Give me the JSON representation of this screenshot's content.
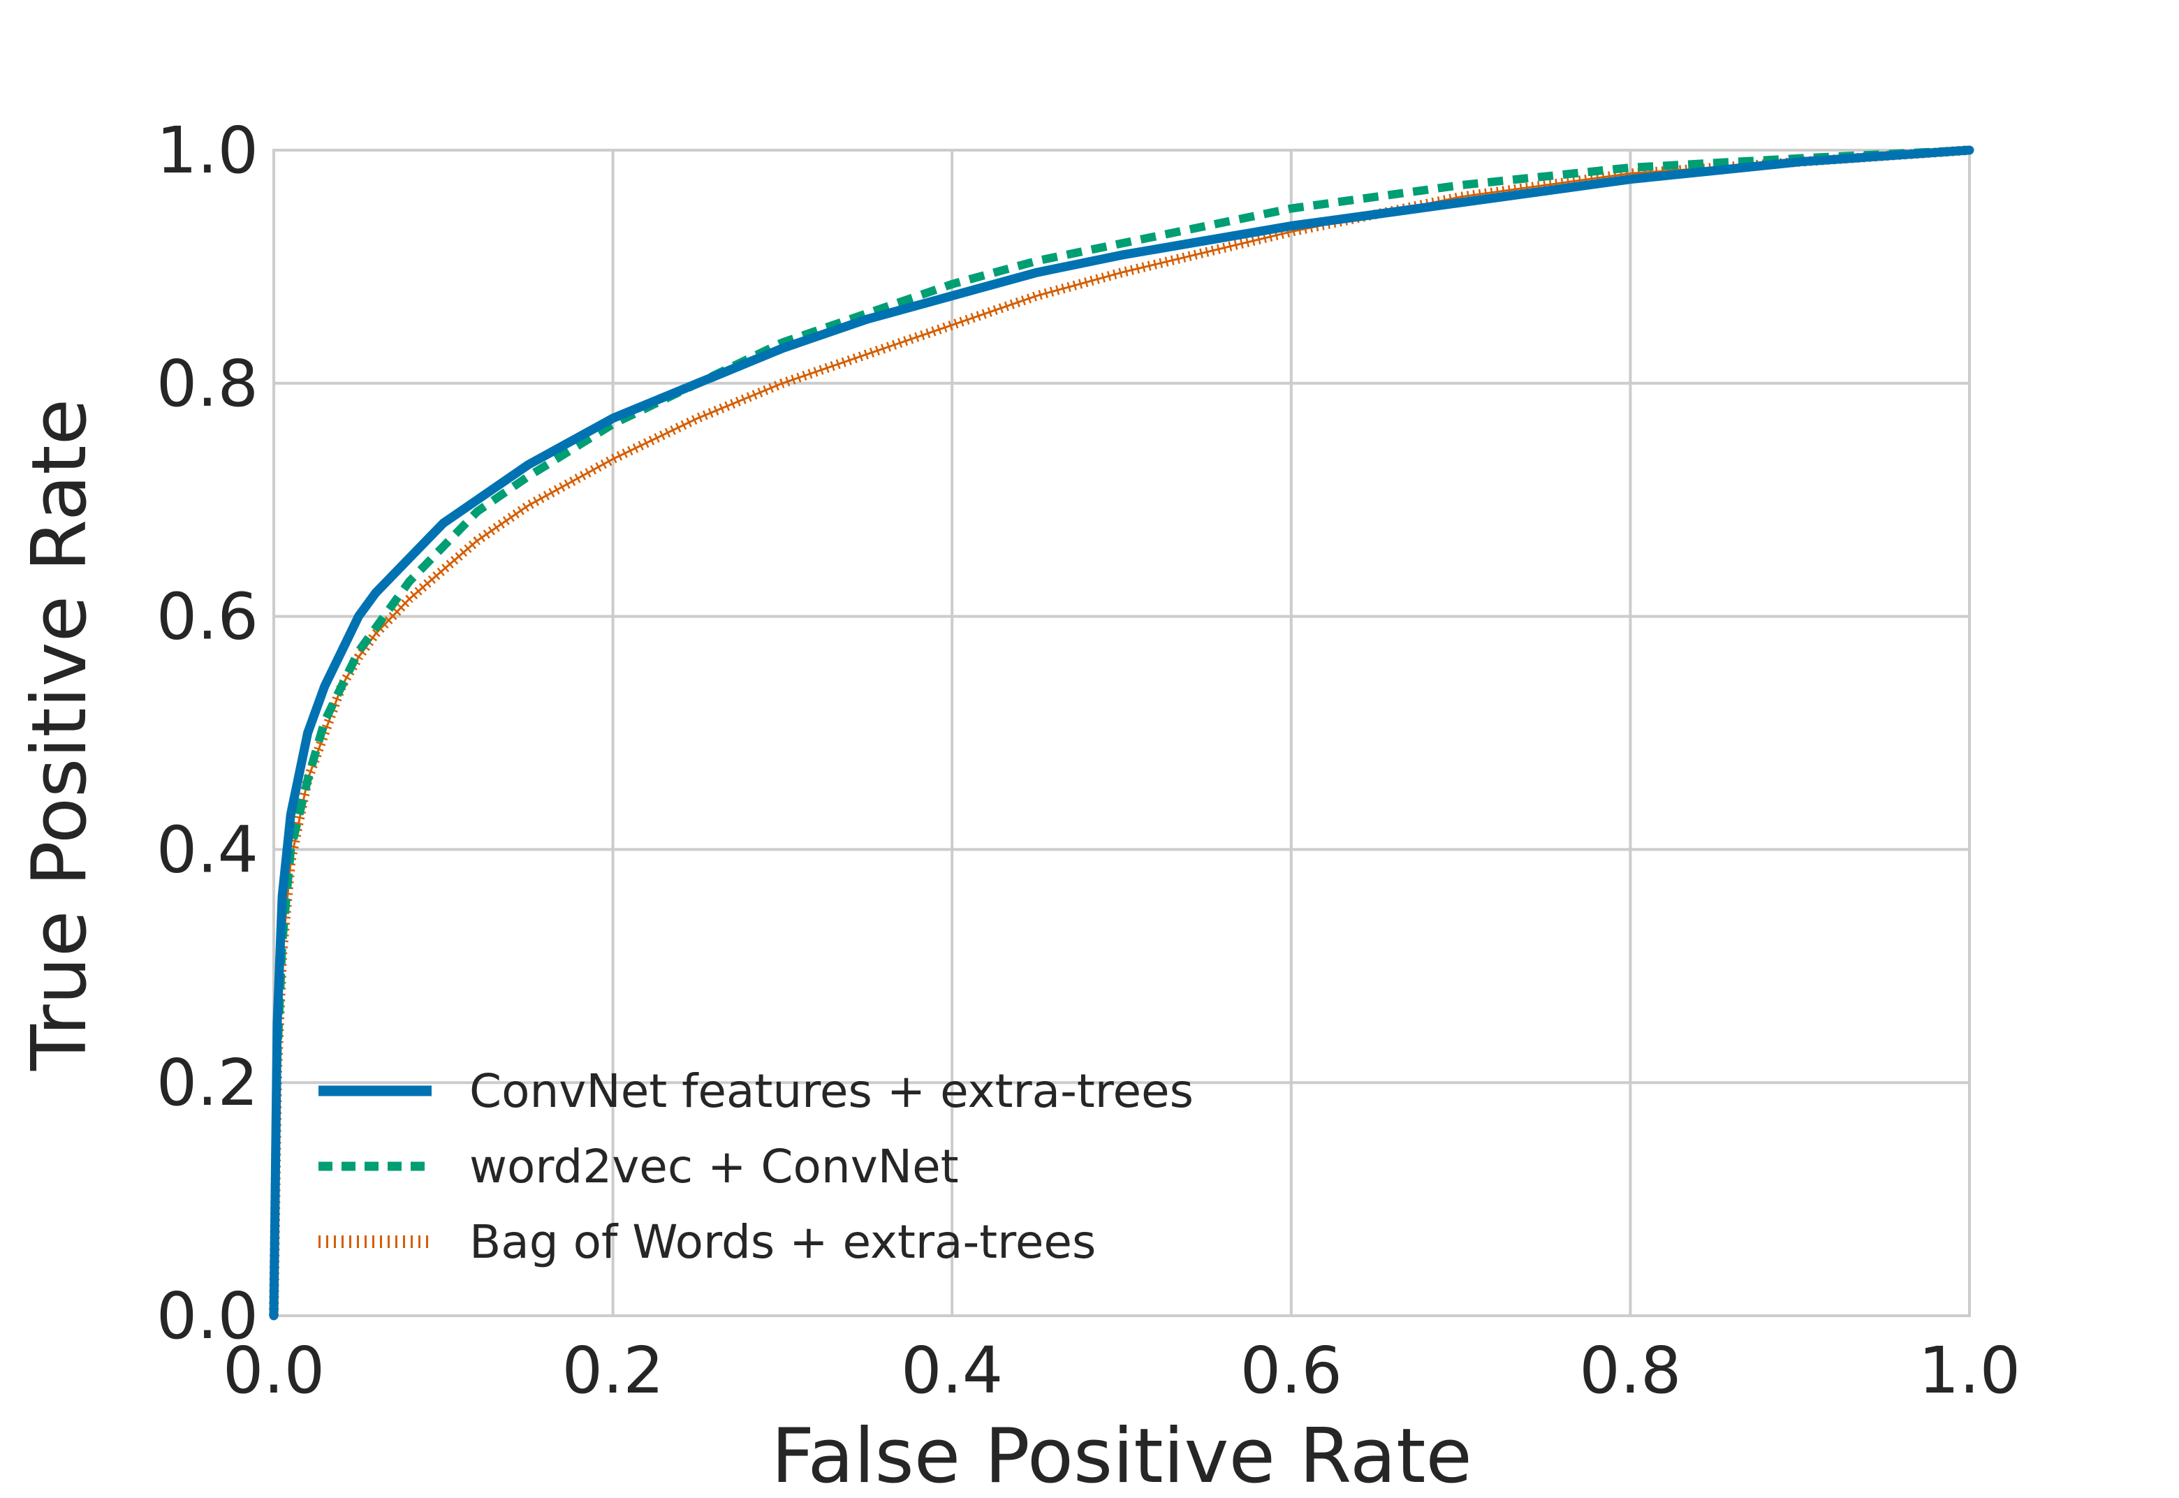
{
  "chart_data": {
    "type": "line",
    "xlabel": "False Positive Rate",
    "ylabel": "True Positive Rate",
    "xlim": [
      0.0,
      1.0
    ],
    "ylim": [
      0.0,
      1.0
    ],
    "x_ticks": [
      "0.0",
      "0.2",
      "0.4",
      "0.6",
      "0.8",
      "1.0"
    ],
    "y_ticks": [
      "0.0",
      "0.2",
      "0.4",
      "0.6",
      "0.8",
      "1.0"
    ],
    "grid": true,
    "legend_position": "bottom-left",
    "series": [
      {
        "name": "ConvNet features + extra-trees",
        "color": "#0072B2",
        "style": "solid",
        "points": [
          [
            0,
            0
          ],
          [
            0.002,
            0.25
          ],
          [
            0.005,
            0.36
          ],
          [
            0.01,
            0.43
          ],
          [
            0.02,
            0.5
          ],
          [
            0.03,
            0.54
          ],
          [
            0.04,
            0.57
          ],
          [
            0.05,
            0.6
          ],
          [
            0.06,
            0.62
          ],
          [
            0.08,
            0.65
          ],
          [
            0.1,
            0.68
          ],
          [
            0.12,
            0.7
          ],
          [
            0.15,
            0.73
          ],
          [
            0.2,
            0.77
          ],
          [
            0.25,
            0.8
          ],
          [
            0.3,
            0.83
          ],
          [
            0.35,
            0.855
          ],
          [
            0.4,
            0.875
          ],
          [
            0.45,
            0.895
          ],
          [
            0.5,
            0.91
          ],
          [
            0.6,
            0.935
          ],
          [
            0.7,
            0.955
          ],
          [
            0.8,
            0.975
          ],
          [
            0.9,
            0.99
          ],
          [
            1.0,
            1.0
          ]
        ]
      },
      {
        "name": "word2vec + ConvNet",
        "color": "#009E73",
        "style": "dashed",
        "points": [
          [
            0,
            0
          ],
          [
            0.002,
            0.22
          ],
          [
            0.005,
            0.32
          ],
          [
            0.01,
            0.4
          ],
          [
            0.02,
            0.46
          ],
          [
            0.03,
            0.51
          ],
          [
            0.04,
            0.54
          ],
          [
            0.05,
            0.57
          ],
          [
            0.06,
            0.59
          ],
          [
            0.08,
            0.63
          ],
          [
            0.1,
            0.66
          ],
          [
            0.12,
            0.69
          ],
          [
            0.15,
            0.72
          ],
          [
            0.2,
            0.765
          ],
          [
            0.25,
            0.8
          ],
          [
            0.3,
            0.835
          ],
          [
            0.35,
            0.86
          ],
          [
            0.4,
            0.885
          ],
          [
            0.45,
            0.905
          ],
          [
            0.5,
            0.92
          ],
          [
            0.6,
            0.95
          ],
          [
            0.7,
            0.97
          ],
          [
            0.8,
            0.985
          ],
          [
            0.9,
            0.993
          ],
          [
            1.0,
            1.0
          ]
        ]
      },
      {
        "name": "Bag of Words + extra-trees",
        "color": "#D55E00",
        "style": "hatched",
        "points": [
          [
            0,
            0
          ],
          [
            0.002,
            0.21
          ],
          [
            0.005,
            0.31
          ],
          [
            0.01,
            0.39
          ],
          [
            0.02,
            0.46
          ],
          [
            0.03,
            0.5
          ],
          [
            0.04,
            0.54
          ],
          [
            0.05,
            0.565
          ],
          [
            0.06,
            0.585
          ],
          [
            0.08,
            0.615
          ],
          [
            0.1,
            0.64
          ],
          [
            0.12,
            0.665
          ],
          [
            0.15,
            0.695
          ],
          [
            0.2,
            0.735
          ],
          [
            0.25,
            0.77
          ],
          [
            0.3,
            0.8
          ],
          [
            0.35,
            0.825
          ],
          [
            0.4,
            0.85
          ],
          [
            0.45,
            0.875
          ],
          [
            0.5,
            0.895
          ],
          [
            0.6,
            0.93
          ],
          [
            0.7,
            0.96
          ],
          [
            0.8,
            0.98
          ],
          [
            0.9,
            0.99
          ],
          [
            1.0,
            1.0
          ]
        ]
      }
    ]
  }
}
